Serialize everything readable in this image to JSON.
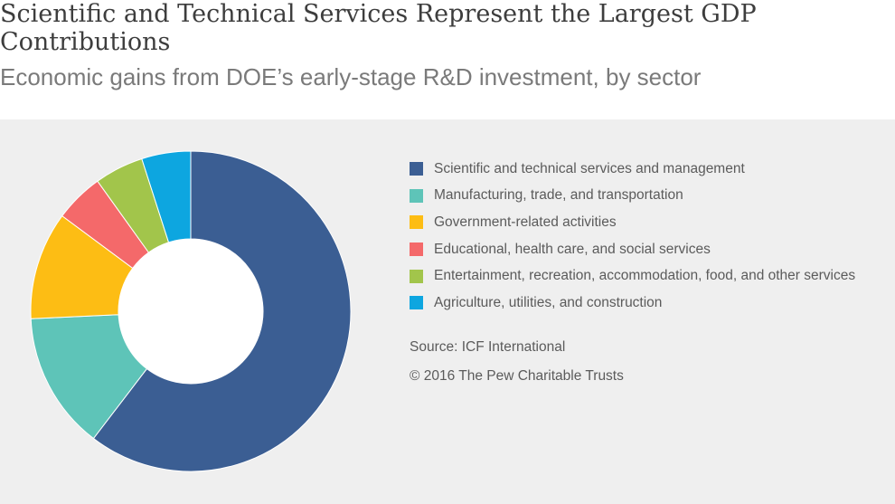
{
  "chart_data": {
    "type": "pie",
    "donut": true,
    "title": "Scientific and Technical Services Represent the Largest GDP Contributions",
    "subtitle": "Economic gains from DOE’s early-stage R&D investment, by sector",
    "categories": [
      "Scientific and technical services and management",
      "Manufacturing, trade, and transportation",
      "Government-related activities",
      "Educational, health care, and social services",
      "Entertainment, recreation, accommodation, food, and other services",
      "Agriculture, utilities, and construction"
    ],
    "values": [
      61,
      14,
      11,
      5,
      5,
      5
    ],
    "unit": "percent",
    "colors": [
      "#3b5e93",
      "#5ec4b8",
      "#fdbd14",
      "#f4696a",
      "#a2c54b",
      "#0da6e0"
    ],
    "legend_position": "right"
  },
  "source": "Source: ICF International",
  "copyright": "© 2016 The Pew Charitable Trusts"
}
